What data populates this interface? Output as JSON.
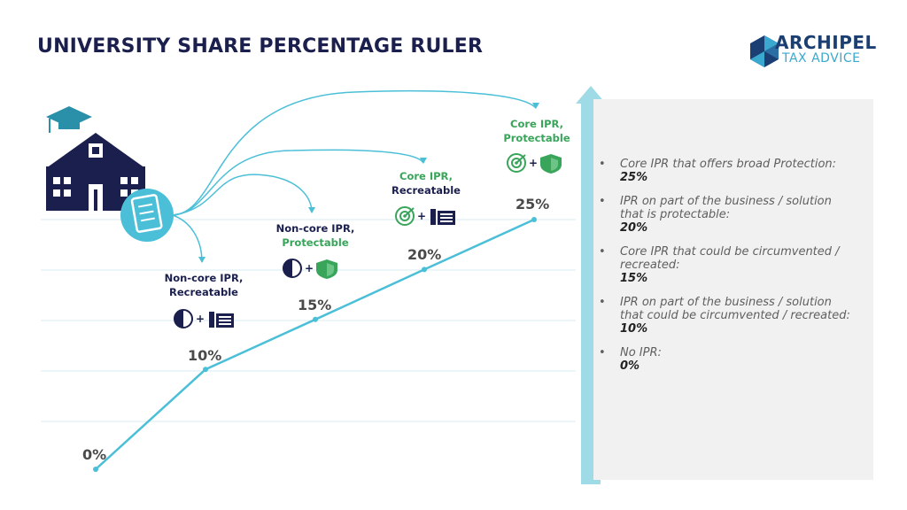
{
  "title": "UNIVERSITY SHARE PERCENTAGE RULER",
  "logo": {
    "line1": "ARCHIPEL",
    "line2": "TAX ADVICE"
  },
  "colors": {
    "line": "#4bbfd8",
    "navy": "#1b1f4e",
    "green": "#39a55a",
    "panel": "#f1f1f1",
    "arrow": "#9fdbe6"
  },
  "icons": [
    "university-building-icon",
    "graduation-cap-icon",
    "checklist-icon",
    "half-circle-icon",
    "shield-icon",
    "target-icon",
    "cabinet-icon"
  ],
  "chart_data": {
    "type": "line",
    "x": [
      0,
      1,
      2,
      3,
      4
    ],
    "values": [
      0,
      10,
      15,
      20,
      25
    ],
    "value_labels": [
      "0%",
      "10%",
      "15%",
      "20%",
      "25%"
    ],
    "ylim": [
      0,
      25
    ],
    "grid": true,
    "annotations": [
      {
        "line1": "Non-core IPR,",
        "line2": "Recreatable",
        "line2_color": "navy",
        "icons": [
          "half-circle-icon",
          "cabinet-icon"
        ]
      },
      {
        "line1": "Non-core IPR,",
        "line2": "Protectable",
        "line2_color": "green",
        "icons": [
          "half-circle-icon",
          "shield-icon"
        ]
      },
      {
        "line1": "Core IPR,",
        "line2": "Recreatable",
        "line1_color": "green",
        "line2_color": "navy",
        "icons": [
          "target-icon",
          "cabinet-icon"
        ]
      },
      {
        "line1": "Core IPR,",
        "line2": "Protectable",
        "line1_color": "green",
        "line2_color": "green",
        "icons": [
          "target-icon",
          "shield-icon"
        ]
      }
    ]
  },
  "legend": {
    "items": [
      {
        "text": "Core IPR that offers broad Protection:",
        "pct": "25%"
      },
      {
        "text": "IPR on part of the business / solution that is protectable:",
        "pct": "20%"
      },
      {
        "text": "Core IPR that could be circumvented / recreated:",
        "pct": "15%"
      },
      {
        "text": "IPR on part of the business / solution that could be circumvented / recreated:",
        "pct": "10%"
      },
      {
        "text": "No IPR:",
        "pct": "0%"
      }
    ]
  },
  "plus": "+"
}
